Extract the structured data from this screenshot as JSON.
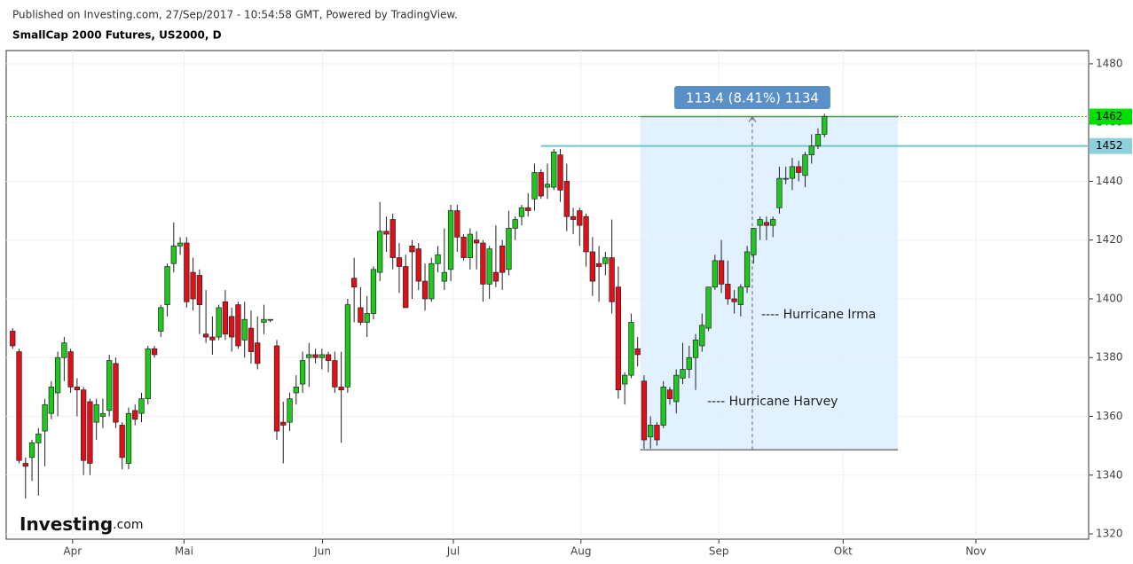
{
  "header": {
    "published": "Published on Investing.com, 27/Sep/2017 - 10:54:58 GMT, Powered by TradingView.",
    "title": "SmallCap 2000 Futures, US2000, D"
  },
  "logo": [
    "Investing",
    ".com"
  ],
  "chart_data": {
    "type": "candlestick",
    "up_color": "#1ec81e",
    "down_color": "#e0101b",
    "grid": true,
    "xlim": [
      -1,
      167
    ],
    "xticks": [
      {
        "value": 9.3,
        "label": "Apr"
      },
      {
        "value": 26.6,
        "label": "Mai"
      },
      {
        "value": 48.1,
        "label": "Jun"
      },
      {
        "value": 68.4,
        "label": "Jul"
      },
      {
        "value": 88.2,
        "label": "Aug"
      },
      {
        "value": 109.6,
        "label": "Sep"
      },
      {
        "value": 128.9,
        "label": "Okt"
      },
      {
        "value": 149.5,
        "label": "Nov"
      }
    ],
    "ylim": [
      1318.2,
      1484.5
    ],
    "yticks": [
      1320,
      1340,
      1360,
      1380,
      1400,
      1420,
      1440,
      1460,
      1480
    ],
    "price_labels": [
      1462,
      1452
    ],
    "measure": {
      "low": 1348.6,
      "high": 1462,
      "label": "113.4 (8.41%) 1134"
    },
    "annotations": [
      "---- Hurricane Irma",
      "---- Hurricane Harvey"
    ],
    "candles": [
      [
        1389,
        1390,
        1383,
        1384
      ],
      [
        1382,
        1383,
        1344,
        1345
      ],
      [
        1344,
        1346,
        1332,
        1343
      ],
      [
        1346,
        1352,
        1338,
        1351
      ],
      [
        1351,
        1356,
        1333,
        1354
      ],
      [
        1355,
        1366,
        1343,
        1364
      ],
      [
        1361,
        1372,
        1359,
        1370
      ],
      [
        1368,
        1382,
        1360,
        1380
      ],
      [
        1380,
        1387,
        1372,
        1385
      ],
      [
        1382,
        1383,
        1368,
        1370
      ],
      [
        1370,
        1373,
        1360,
        1369
      ],
      [
        1369,
        1370,
        1340,
        1345
      ],
      [
        1365,
        1366,
        1340,
        1344
      ],
      [
        1358,
        1366,
        1352,
        1364
      ],
      [
        1360,
        1366,
        1356,
        1361
      ],
      [
        1362,
        1381,
        1360,
        1379
      ],
      [
        1378,
        1380,
        1356,
        1358
      ],
      [
        1357,
        1358,
        1342,
        1346
      ],
      [
        1344,
        1363,
        1342,
        1361
      ],
      [
        1362,
        1364,
        1357,
        1359
      ],
      [
        1361,
        1368,
        1358,
        1366
      ],
      [
        1366,
        1384,
        1364,
        1383
      ],
      [
        1383,
        1384,
        1380,
        1381
      ],
      [
        1389,
        1398,
        1387,
        1397
      ],
      [
        1398,
        1412,
        1394,
        1411
      ],
      [
        1412,
        1426,
        1409,
        1418
      ],
      [
        1418,
        1421,
        1415,
        1419
      ],
      [
        1419,
        1421,
        1397,
        1399
      ],
      [
        1409,
        1414,
        1396,
        1400
      ],
      [
        1408,
        1410,
        1388,
        1398
      ],
      [
        1388,
        1403,
        1385,
        1387
      ],
      [
        1387,
        1394,
        1381,
        1386
      ],
      [
        1387,
        1398,
        1386,
        1397
      ],
      [
        1399,
        1403,
        1386,
        1388
      ],
      [
        1394,
        1397,
        1382,
        1387
      ],
      [
        1398,
        1399,
        1383,
        1384
      ],
      [
        1386,
        1399,
        1380,
        1393
      ],
      [
        1390,
        1396,
        1378,
        1382
      ],
      [
        1385,
        1394,
        1376,
        1378
      ],
      [
        1392,
        1398,
        1388,
        1393
      ],
      [
        1393,
        1393,
        1392,
        1393
      ],
      [
        1384,
        1386,
        1352,
        1355
      ],
      [
        1358,
        1365,
        1344,
        1357
      ],
      [
        1358,
        1368,
        1355,
        1366
      ],
      [
        1368,
        1374,
        1364,
        1370
      ],
      [
        1371,
        1382,
        1368,
        1379
      ],
      [
        1380,
        1385,
        1370,
        1381
      ],
      [
        1381,
        1383,
        1378,
        1380
      ],
      [
        1380,
        1383,
        1376,
        1381
      ],
      [
        1381,
        1382,
        1375,
        1379
      ],
      [
        1379,
        1382,
        1368,
        1370
      ],
      [
        1370,
        1382,
        1351,
        1369
      ],
      [
        1370,
        1400,
        1368,
        1398
      ],
      [
        1407,
        1414,
        1392,
        1404
      ],
      [
        1397,
        1404,
        1391,
        1392
      ],
      [
        1392,
        1401,
        1387,
        1395
      ],
      [
        1395,
        1411,
        1393,
        1410
      ],
      [
        1409,
        1433,
        1406,
        1423
      ],
      [
        1423,
        1428,
        1416,
        1422
      ],
      [
        1427,
        1429,
        1410,
        1414
      ],
      [
        1414,
        1419,
        1402,
        1411
      ],
      [
        1411,
        1415,
        1397,
        1397
      ],
      [
        1418,
        1420,
        1400,
        1416
      ],
      [
        1417,
        1419,
        1403,
        1406
      ],
      [
        1406,
        1412,
        1396,
        1400
      ],
      [
        1400,
        1414,
        1399,
        1412
      ],
      [
        1412,
        1418,
        1409,
        1415
      ],
      [
        1406,
        1424,
        1403,
        1409
      ],
      [
        1410,
        1432,
        1406,
        1430
      ],
      [
        1430,
        1432,
        1416,
        1421
      ],
      [
        1421,
        1422,
        1413,
        1414
      ],
      [
        1414,
        1424,
        1410,
        1422
      ],
      [
        1420,
        1423,
        1410,
        1419
      ],
      [
        1419,
        1420,
        1399,
        1405
      ],
      [
        1405,
        1418,
        1400,
        1417
      ],
      [
        1409,
        1425,
        1404,
        1406
      ],
      [
        1418,
        1420,
        1403,
        1409
      ],
      [
        1410,
        1430,
        1408,
        1424
      ],
      [
        1424,
        1428,
        1420,
        1427
      ],
      [
        1428,
        1432,
        1425,
        1431
      ],
      [
        1431,
        1436,
        1428,
        1430
      ],
      [
        1434,
        1446,
        1430,
        1443
      ],
      [
        1443,
        1444,
        1434,
        1435
      ],
      [
        1438,
        1446,
        1434,
        1439
      ],
      [
        1438,
        1451,
        1437,
        1450
      ],
      [
        1449,
        1451,
        1433,
        1437
      ],
      [
        1440,
        1446,
        1423,
        1428
      ],
      [
        1428,
        1431,
        1422,
        1427
      ],
      [
        1430,
        1431,
        1418,
        1425
      ],
      [
        1428,
        1429,
        1411,
        1416
      ],
      [
        1416,
        1421,
        1401,
        1406
      ],
      [
        1412,
        1418,
        1399,
        1411
      ],
      [
        1412,
        1416,
        1408,
        1414
      ],
      [
        1414,
        1427,
        1395,
        1399
      ],
      [
        1404,
        1411,
        1366,
        1369
      ],
      [
        1371,
        1375,
        1364,
        1374
      ],
      [
        1374,
        1395,
        1373,
        1392
      ],
      [
        1383,
        1387,
        1377,
        1381
      ],
      [
        1372,
        1374,
        1349,
        1352
      ],
      [
        1353,
        1360,
        1349,
        1357
      ],
      [
        1357,
        1358,
        1350,
        1352
      ],
      [
        1357,
        1372,
        1356,
        1370
      ],
      [
        1369,
        1370,
        1364,
        1366
      ],
      [
        1365,
        1376,
        1361,
        1374
      ],
      [
        1373,
        1385,
        1371,
        1376
      ],
      [
        1376,
        1384,
        1373,
        1380
      ],
      [
        1380,
        1388,
        1369,
        1386
      ],
      [
        1384,
        1395,
        1382,
        1391
      ],
      [
        1390,
        1404,
        1389,
        1404
      ],
      [
        1404,
        1415,
        1403,
        1413
      ],
      [
        1413,
        1420,
        1402,
        1405
      ],
      [
        1405,
        1413,
        1398,
        1400
      ],
      [
        1400,
        1403,
        1395,
        1399
      ],
      [
        1398,
        1405,
        1394,
        1404
      ],
      [
        1404,
        1418,
        1402,
        1416
      ],
      [
        1415,
        1424,
        1412,
        1424
      ],
      [
        1425,
        1428,
        1420,
        1427
      ],
      [
        1426,
        1428,
        1420,
        1425
      ],
      [
        1425,
        1428,
        1421,
        1427
      ],
      [
        1431,
        1445,
        1429,
        1441
      ],
      [
        1441,
        1445,
        1439,
        1441
      ],
      [
        1441,
        1448,
        1437,
        1445
      ],
      [
        1445,
        1447,
        1440,
        1443
      ],
      [
        1442,
        1450,
        1438,
        1449
      ],
      [
        1449,
        1456,
        1446,
        1452
      ],
      [
        1452,
        1458,
        1451,
        1456
      ],
      [
        1456,
        1463,
        1455,
        1462
      ]
    ]
  }
}
